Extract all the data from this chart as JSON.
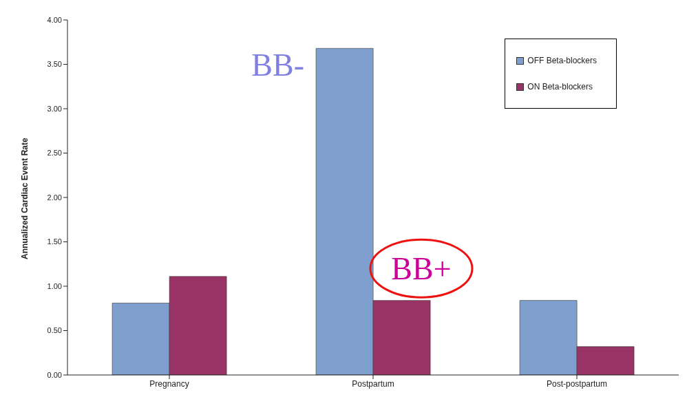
{
  "chart_data": {
    "type": "bar",
    "ylabel": "Annualized Cardiac Event Rate",
    "categories": [
      "Pregnancy",
      "Postpartum",
      "Post-postpartum"
    ],
    "series": [
      {
        "name": "OFF Beta-blockers",
        "color": "#7f9fcf",
        "values": [
          0.81,
          3.68,
          0.84
        ]
      },
      {
        "name": "ON Beta-blockers",
        "color": "#993366",
        "values": [
          1.11,
          0.84,
          0.32
        ]
      }
    ],
    "ylim": [
      0,
      4
    ],
    "yticks": [
      {
        "value": 0,
        "label": "0.00"
      },
      {
        "value": 0.5,
        "label": "0.50"
      },
      {
        "value": 1,
        "label": "1.00"
      },
      {
        "value": 1.5,
        "label": "1.50"
      },
      {
        "value": 2,
        "label": "2.00"
      },
      {
        "value": 2.5,
        "label": "2.50"
      },
      {
        "value": 3,
        "label": "3.00"
      },
      {
        "value": 3.5,
        "label": "3.50"
      },
      {
        "value": 4,
        "label": "4.00"
      }
    ],
    "grid": false,
    "legend": "top right",
    "annotations": [
      {
        "text": "BB-",
        "x": "Postpartum",
        "y": 3.5
      },
      {
        "text": "BB+",
        "x": "Postpartum",
        "y": 1.2
      }
    ]
  }
}
